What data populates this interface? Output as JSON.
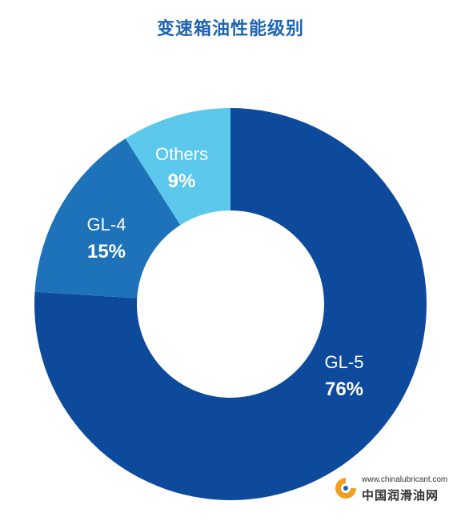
{
  "colors": {
    "title": "#1e64b4",
    "background": "#ffffff"
  },
  "chart_data": {
    "type": "pie",
    "donut": true,
    "title": "变速箱油性能级别",
    "slices": [
      {
        "label": "GL-5",
        "value": 76,
        "value_label": "76%",
        "color": "#0e4a9c"
      },
      {
        "label": "GL-4",
        "value": 15,
        "value_label": "15%",
        "color": "#1e72b9"
      },
      {
        "label": "Others",
        "value": 9,
        "value_label": "9%",
        "color": "#5bc8ec"
      }
    ]
  },
  "watermark": {
    "url": "www.chinalubricant.com",
    "name": "中国润滑油网"
  }
}
